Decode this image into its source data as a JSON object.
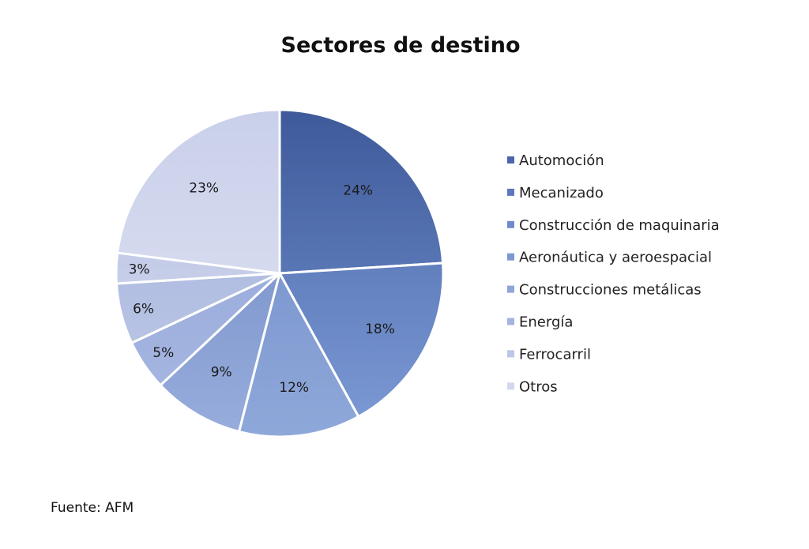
{
  "chart_data": {
    "type": "pie",
    "title": "Sectores de destino",
    "categories": [
      "Automoción",
      "Mecanizado",
      "Construcción de maquinaria",
      "Aeronáutica y aeroespacial",
      "Construcciones metálicas",
      "Energía",
      "Ferrocarril",
      "Otros"
    ],
    "values": [
      24,
      18,
      12,
      9,
      5,
      6,
      3,
      23
    ],
    "value_labels": [
      "24%",
      "18%",
      "12%",
      "9%",
      "5%",
      "6%",
      "3%",
      "23%"
    ],
    "colors": [
      [
        "#3f5a9a",
        "#7292d0"
      ],
      [
        "#4965a8",
        "#7d9bd6"
      ],
      [
        "#6c89c6",
        "#8fa8da"
      ],
      [
        "#6a85c2",
        "#98addc"
      ],
      [
        "#8ea3d8",
        "#a9b8e2"
      ],
      [
        "#9fb0dc",
        "#c2cbe7"
      ],
      [
        "#b6c1e3",
        "#d4d9ee"
      ],
      [
        "#c9d0ea",
        "#e1e4f2"
      ]
    ],
    "legend_colors": [
      "#4a66aa",
      "#5b77bd",
      "#6f8bcb",
      "#7e97d1",
      "#8fa5d8",
      "#a4b4de",
      "#bcc6e6",
      "#d2d8ee"
    ],
    "legend_position": "right",
    "start_angle_deg": 0,
    "direction": "clockwise"
  },
  "source": "Fuente: AFM"
}
